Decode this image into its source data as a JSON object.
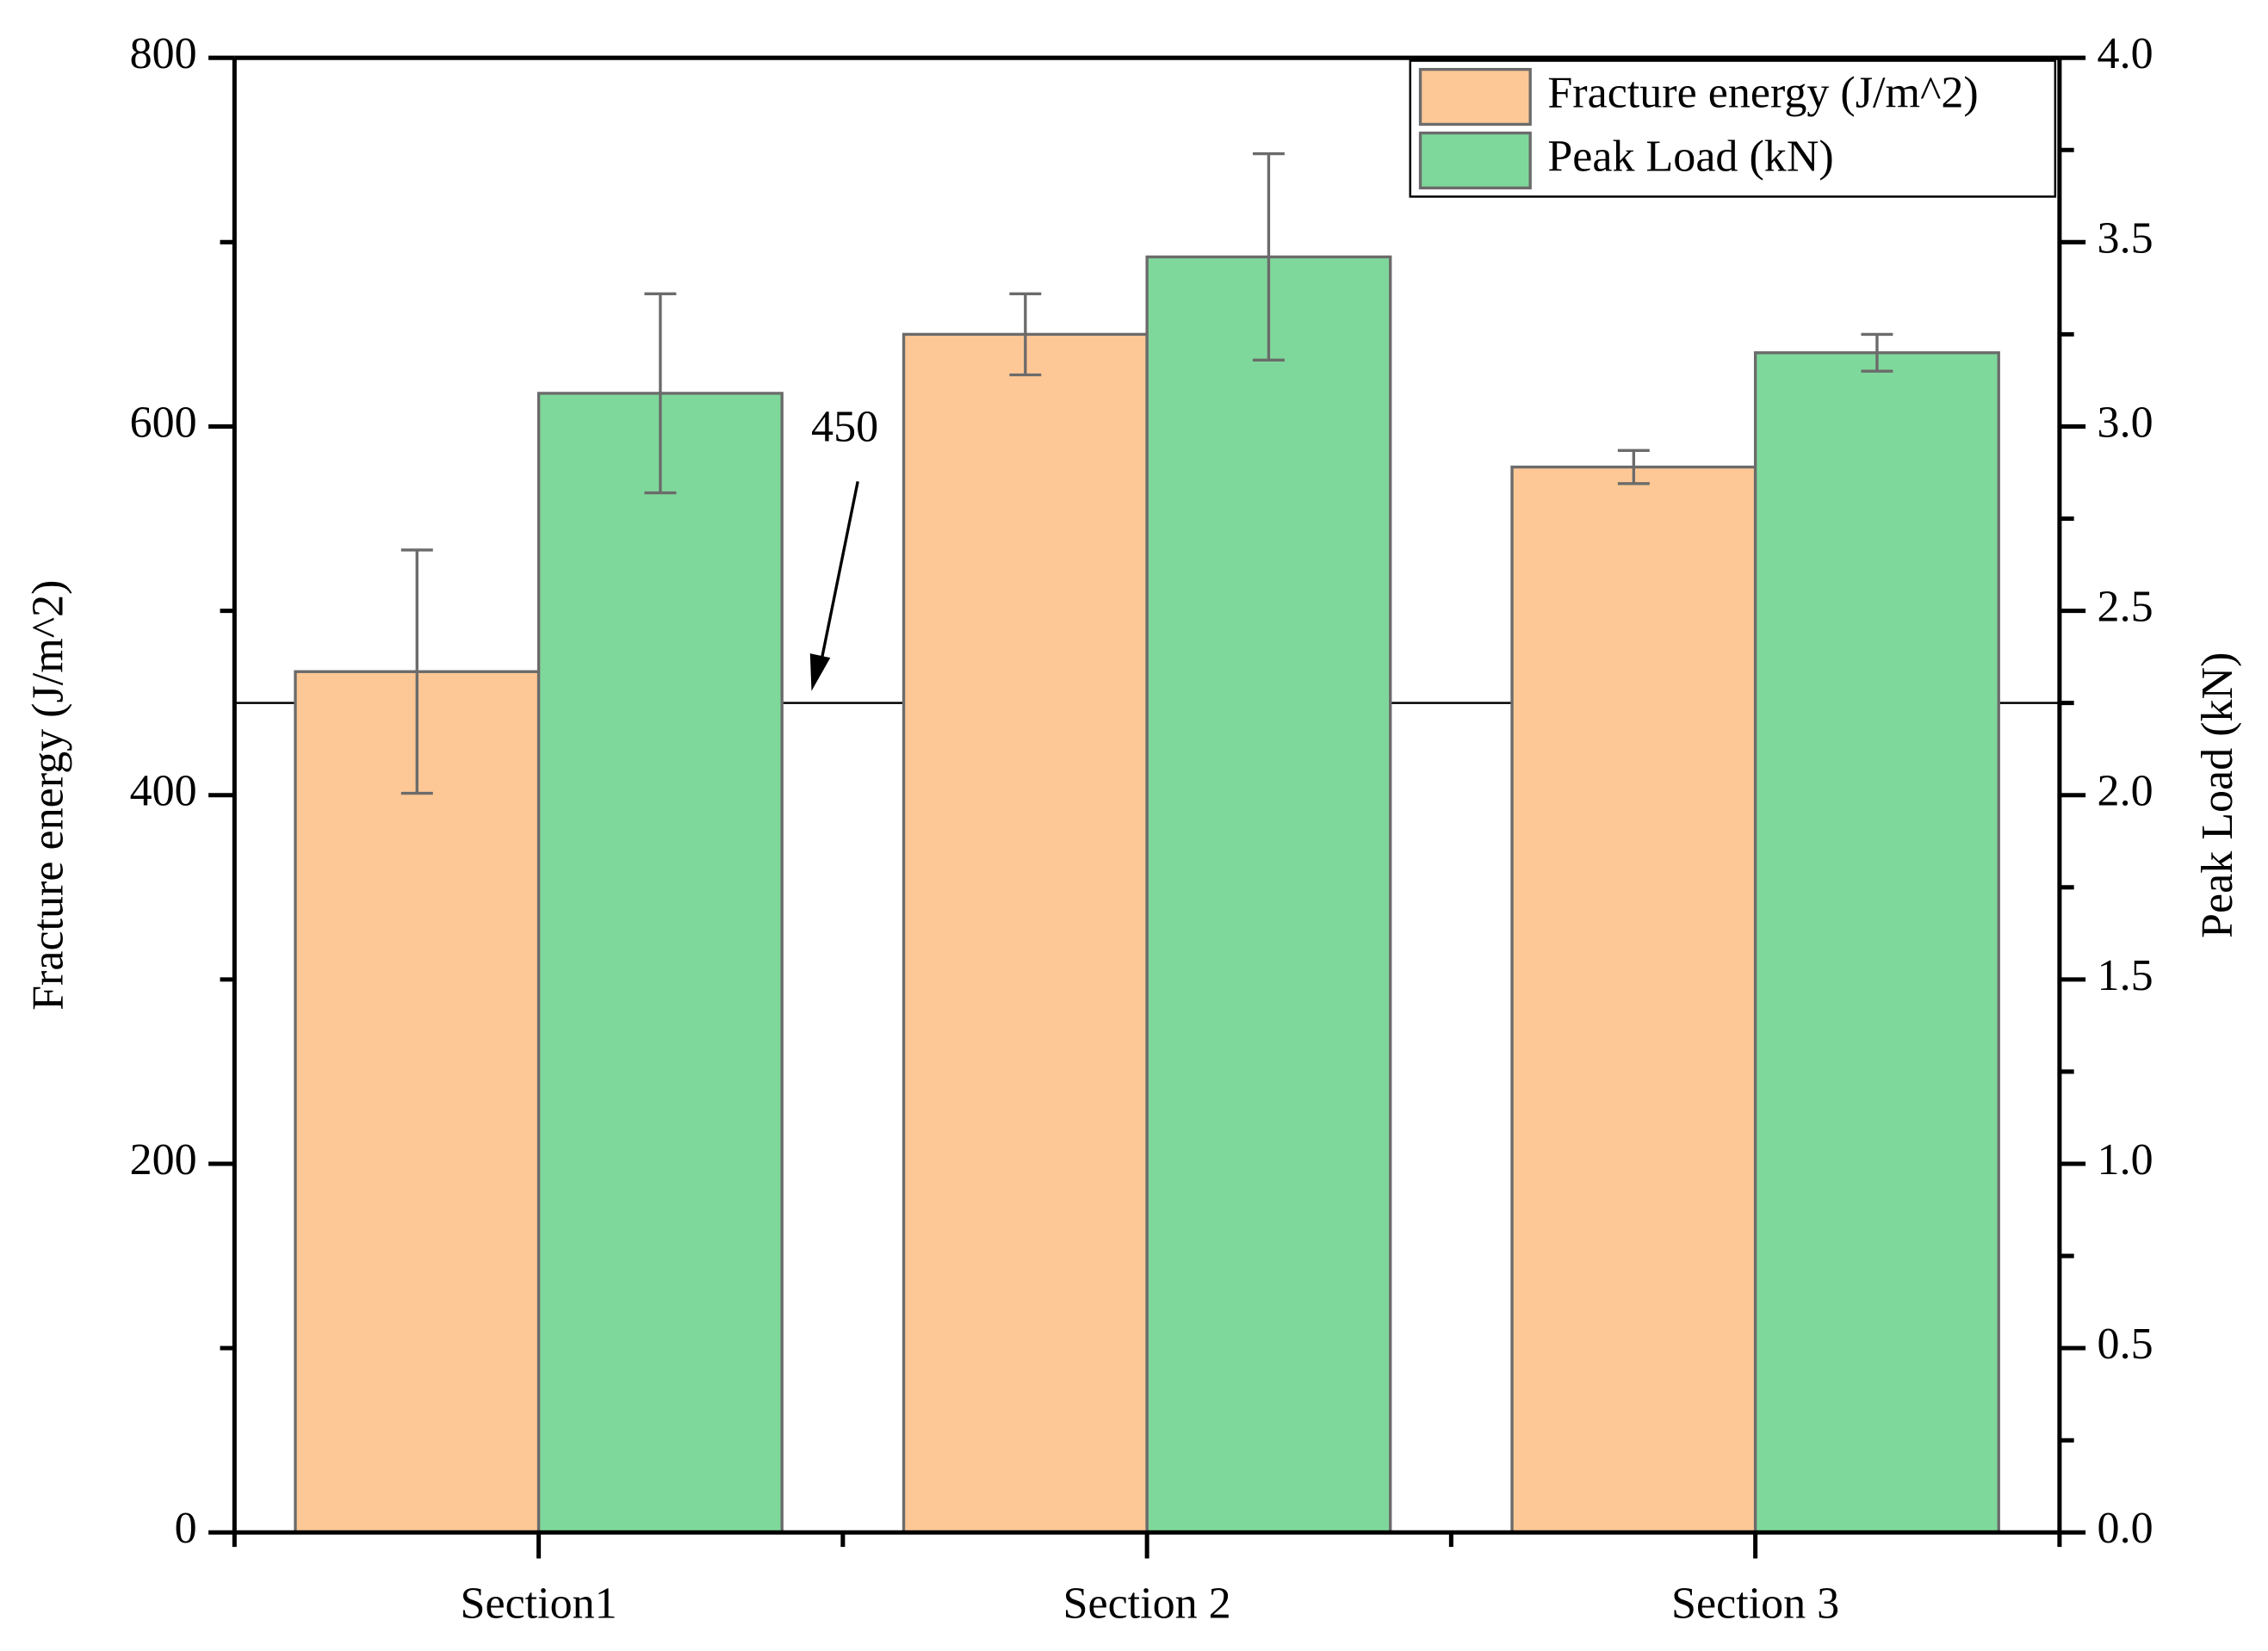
{
  "chart_data": {
    "type": "bar",
    "categories": [
      "Section1",
      "Section 2",
      "Section 3"
    ],
    "series": [
      {
        "name": "Fracture energy (J/m^2)",
        "color": "#fec896",
        "values": [
          467,
          650,
          578
        ],
        "errors": [
          66,
          22,
          9
        ]
      },
      {
        "name": "Peak Load (kN)",
        "color": "#7fd89b",
        "axis": "y2",
        "values": [
          3.09,
          3.46,
          3.2
        ],
        "errors": [
          0.27,
          0.28,
          0.05
        ]
      }
    ],
    "ylabel": "Fracture energy (J/m^2)",
    "y2label": "Peak Load (kN)",
    "ylim": [
      0,
      800
    ],
    "yticks": [
      0,
      200,
      400,
      600,
      800
    ],
    "yminorticks": [
      100,
      300,
      500,
      700
    ],
    "y2lim": [
      0,
      4
    ],
    "y2ticks": [
      {
        "value": 0,
        "label": "0.0"
      },
      0.5,
      {
        "value": 1,
        "label": "1.0"
      },
      1.5,
      {
        "value": 2,
        "label": "2.0"
      },
      2.5,
      {
        "value": 3,
        "label": "3.0"
      },
      3.5,
      {
        "value": 4,
        "label": "4.0"
      }
    ],
    "y2minorticks": [
      0.25,
      0.75,
      1.25,
      1.75,
      2.25,
      2.75,
      3.25,
      3.75
    ],
    "reference_line": 450,
    "legend": "upper right",
    "grid": false
  }
}
